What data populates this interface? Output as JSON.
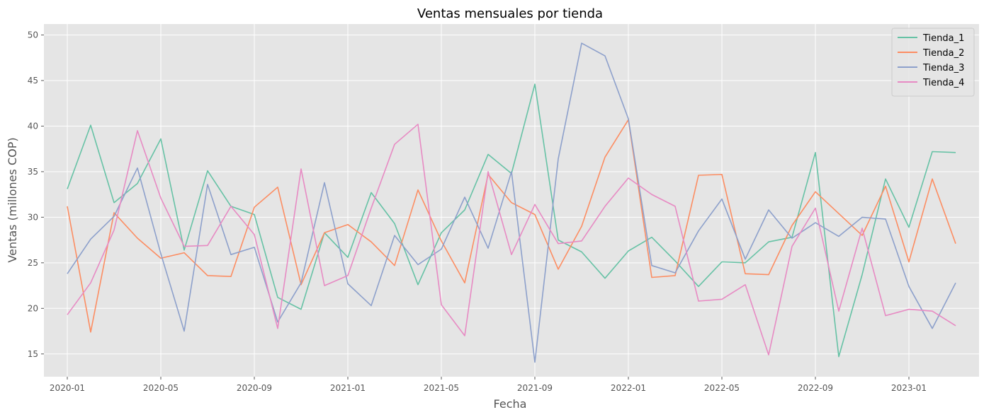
{
  "chart_data": {
    "type": "line",
    "title": "Ventas mensuales por tienda",
    "xlabel": "Fecha",
    "ylabel": "Ventas (millones COP)",
    "x_type": "date",
    "x": [
      "2020-01",
      "2020-02",
      "2020-03",
      "2020-04",
      "2020-05",
      "2020-06",
      "2020-07",
      "2020-08",
      "2020-09",
      "2020-10",
      "2020-11",
      "2020-12",
      "2021-01",
      "2021-02",
      "2021-03",
      "2021-04",
      "2021-05",
      "2021-06",
      "2021-07",
      "2021-08",
      "2021-09",
      "2021-10",
      "2021-11",
      "2021-12",
      "2022-01",
      "2022-02",
      "2022-03",
      "2022-04",
      "2022-05",
      "2022-06",
      "2022-07",
      "2022-08",
      "2022-09",
      "2022-10",
      "2022-11",
      "2022-12",
      "2023-01",
      "2023-02",
      "2023-03"
    ],
    "x_ticks": [
      "2020-01",
      "2020-05",
      "2020-09",
      "2021-01",
      "2021-05",
      "2021-09",
      "2022-01",
      "2022-05",
      "2022-09",
      "2023-01"
    ],
    "xlim": [
      "2019-12-01",
      "2023-04-01"
    ],
    "ylim": [
      12.5,
      51.2
    ],
    "y_ticks": [
      15,
      20,
      25,
      30,
      35,
      40,
      45,
      50
    ],
    "grid": true,
    "legend_position": "top-right",
    "series": [
      {
        "name": "Tienda_1",
        "color": "#66c2a5",
        "values": [
          33.1,
          40.1,
          31.6,
          33.7,
          38.6,
          26.4,
          35.1,
          31.2,
          30.3,
          21.2,
          19.9,
          28.3,
          25.6,
          32.7,
          29.3,
          22.6,
          28.3,
          30.8,
          36.9,
          34.8,
          44.6,
          27.5,
          26.2,
          23.3,
          26.3,
          27.8,
          25.2,
          22.4,
          25.1,
          25.0,
          27.3,
          27.8,
          37.1,
          14.7,
          23.7,
          34.2,
          28.9,
          37.2,
          37.1
        ]
      },
      {
        "name": "Tienda_2",
        "color": "#fc8d62",
        "values": [
          31.2,
          17.4,
          30.5,
          27.7,
          25.5,
          26.1,
          23.6,
          23.5,
          31.1,
          33.3,
          22.6,
          28.3,
          29.2,
          27.3,
          24.7,
          33.0,
          27.4,
          22.8,
          34.7,
          31.6,
          30.3,
          24.3,
          29.0,
          36.6,
          40.7,
          23.4,
          23.6,
          34.6,
          34.7,
          23.8,
          23.7,
          29.1,
          32.8,
          30.4,
          28.0,
          33.4,
          25.1,
          34.2,
          27.1
        ]
      },
      {
        "name": "Tienda_3",
        "color": "#8da0cb",
        "values": [
          23.8,
          27.6,
          30.1,
          35.4,
          26.0,
          17.5,
          33.6,
          25.9,
          26.7,
          18.5,
          22.8,
          33.8,
          22.7,
          20.3,
          28.0,
          24.8,
          26.5,
          32.2,
          26.6,
          35.0,
          14.1,
          36.4,
          49.1,
          47.7,
          40.8,
          24.7,
          23.9,
          28.5,
          32.0,
          25.4,
          30.8,
          27.7,
          29.4,
          27.9,
          30.0,
          29.8,
          22.4,
          17.8,
          22.8
        ]
      },
      {
        "name": "Tienda_4",
        "color": "#e78ac3",
        "values": [
          19.3,
          22.8,
          28.6,
          39.5,
          32.1,
          26.8,
          26.9,
          31.2,
          28.1,
          17.8,
          35.3,
          22.5,
          23.6,
          31.0,
          38.0,
          40.2,
          20.4,
          17.0,
          35.0,
          25.9,
          31.4,
          27.1,
          27.4,
          31.2,
          34.3,
          32.5,
          31.2,
          20.8,
          21.0,
          22.6,
          14.9,
          26.8,
          31.0,
          19.7,
          28.8,
          19.2,
          19.9,
          19.7,
          18.1
        ]
      }
    ]
  }
}
